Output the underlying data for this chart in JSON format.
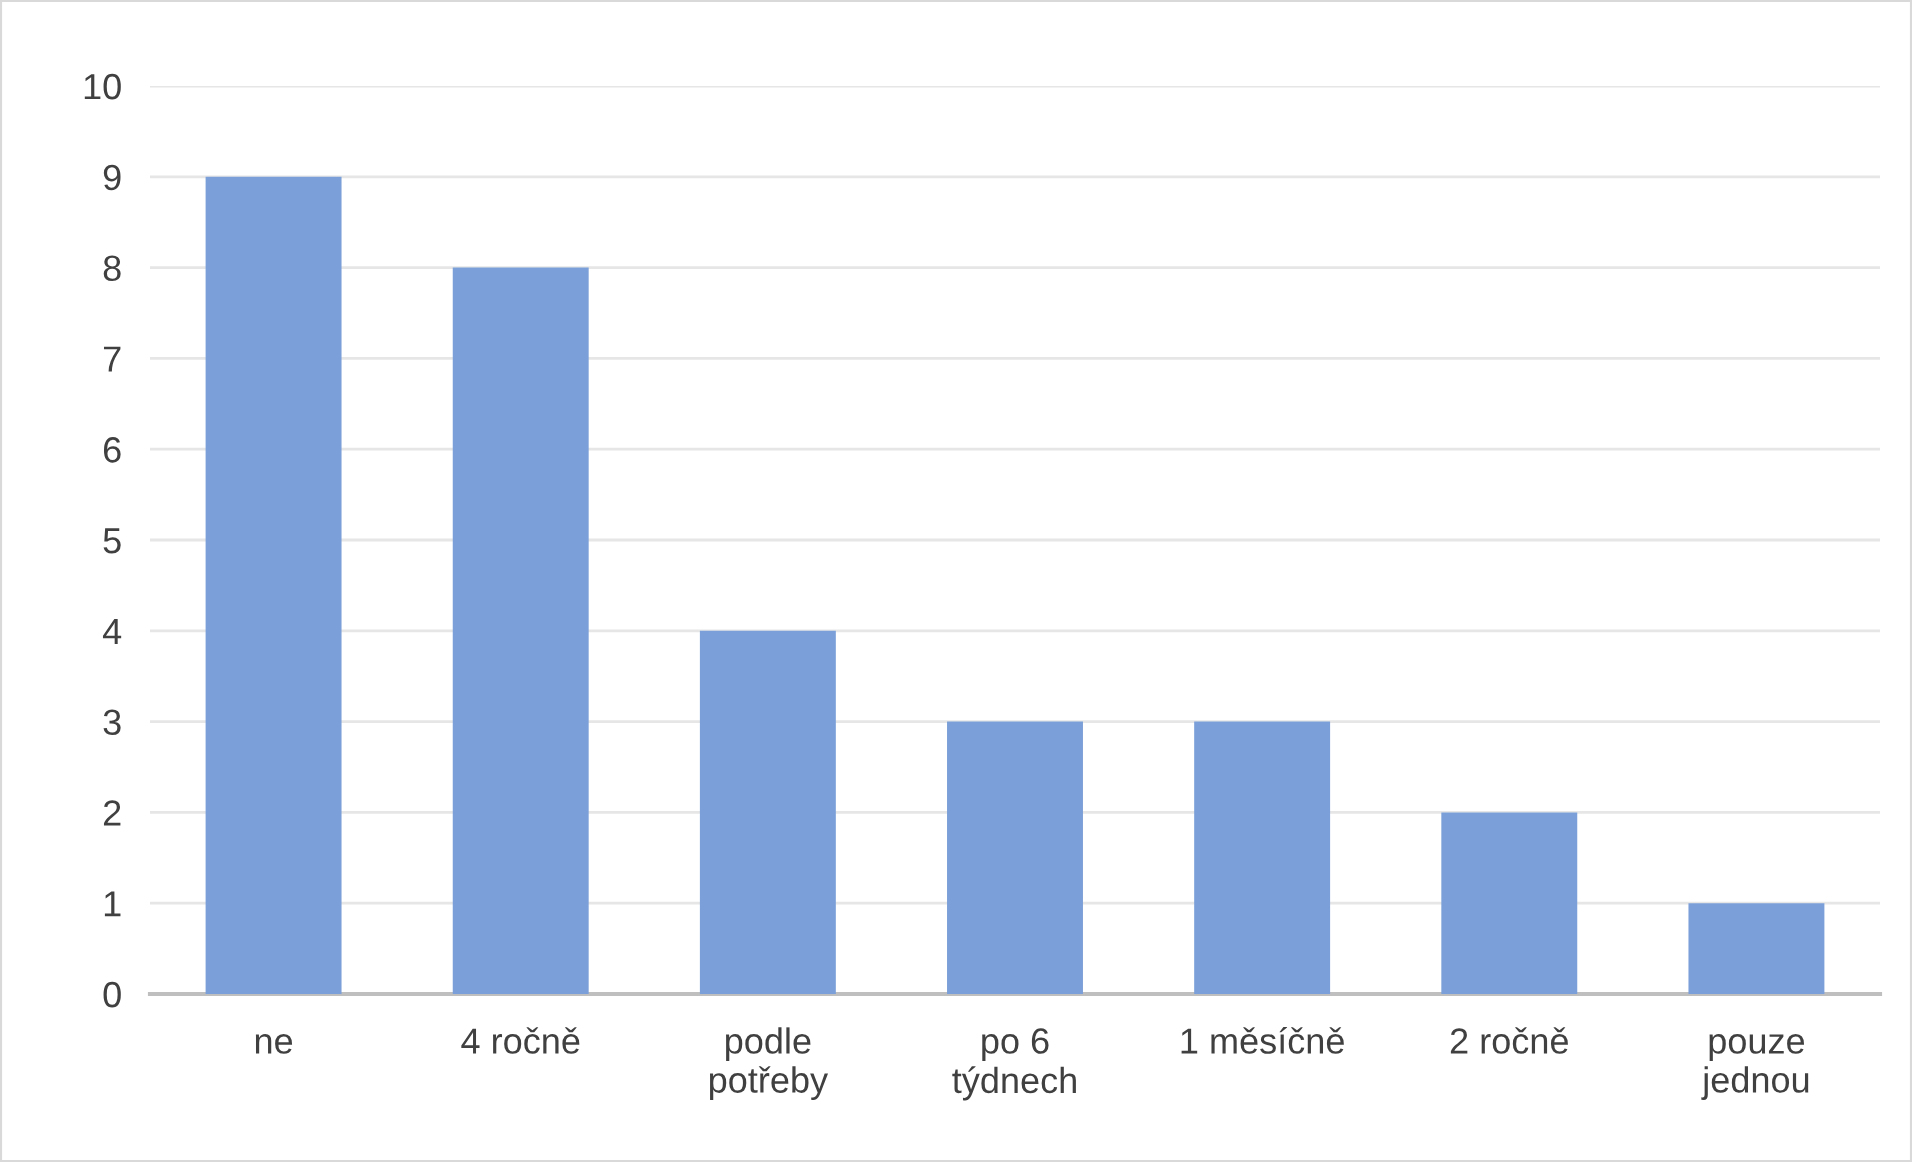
{
  "chart_data": {
    "type": "bar",
    "categories": [
      "ne",
      "4 ročně",
      "podle\npotřeby",
      "po 6\ntýdnech",
      "1 měsíčně",
      "2 ročně",
      "pouze\njednou"
    ],
    "values": [
      9,
      8,
      4,
      3,
      3,
      2,
      1
    ],
    "color": "#7b9fd8",
    "ylim": [
      0,
      10
    ],
    "yticks": [
      0,
      1,
      2,
      3,
      4,
      5,
      6,
      7,
      8,
      9,
      10
    ],
    "grid": "y"
  }
}
